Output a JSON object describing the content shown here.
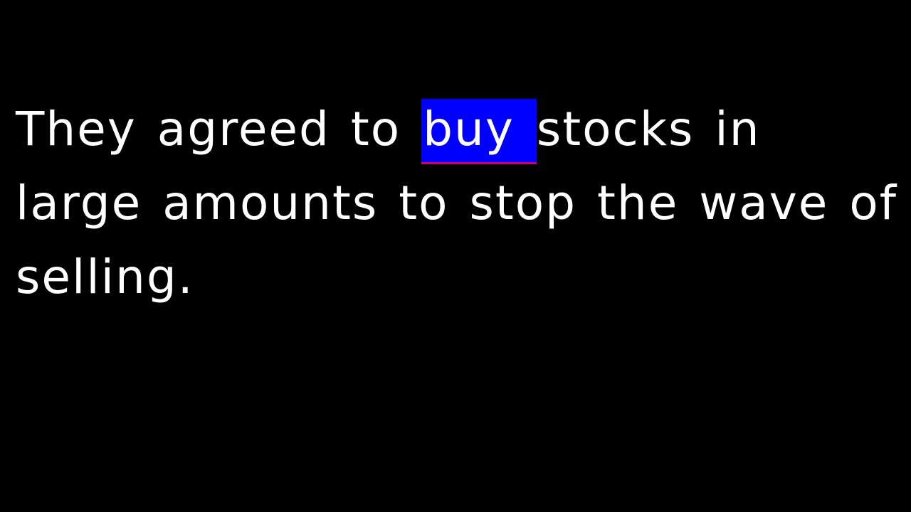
{
  "caption": {
    "before": "They agreed to ",
    "highlighted_word": "buy ",
    "after": "stocks in large amounts to stop the wave of selling."
  },
  "colors": {
    "background": "#000000",
    "text": "#ffffff",
    "highlight_background": "#0000ff",
    "highlight_underline": "#c8007a"
  }
}
